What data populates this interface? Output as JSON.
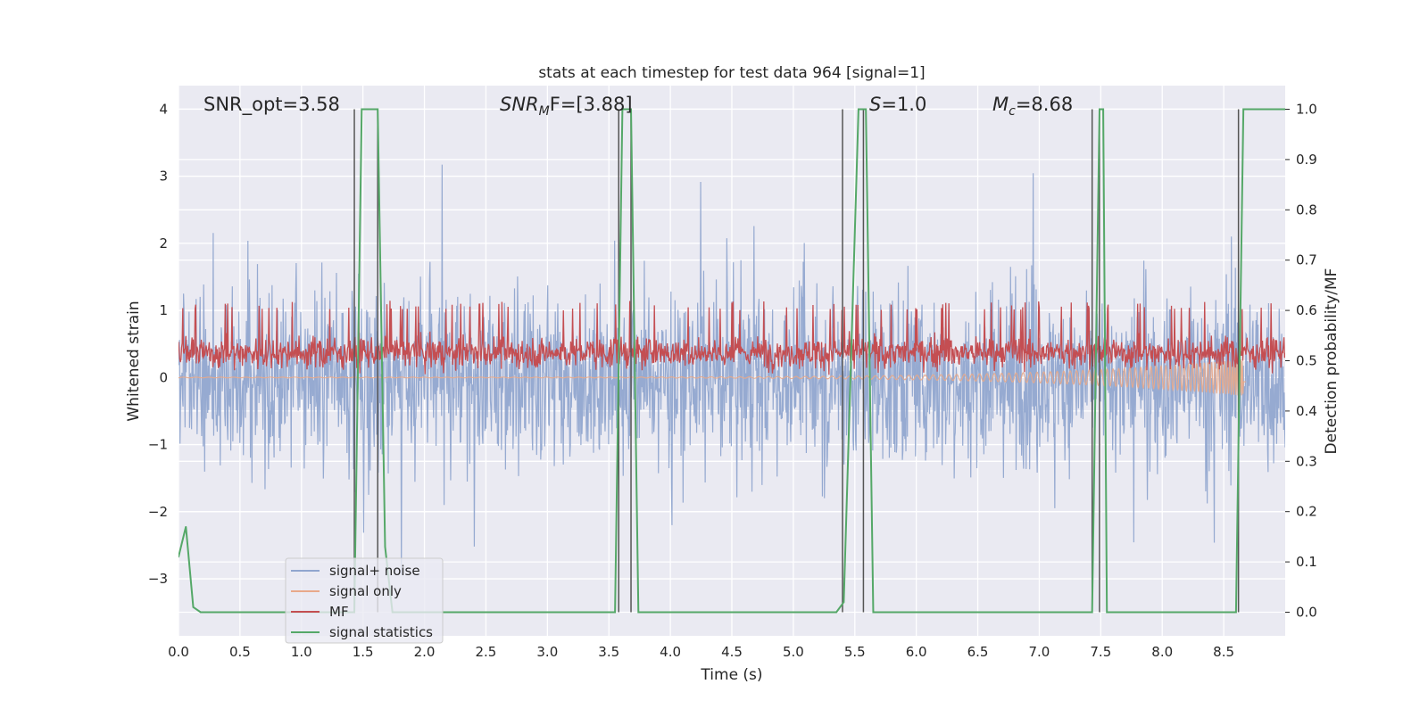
{
  "chart_data": {
    "type": "line",
    "title": "stats at each timestep for test data 964 [signal=1]",
    "xlabel": "Time (s)",
    "ylabel_left": "Whitened strain",
    "ylabel_right": "Detection probability/MF",
    "xlim": [
      0.0,
      9.0
    ],
    "ylim_left": [
      -3.85,
      4.35
    ],
    "ylim_right": [
      -0.047,
      1.047
    ],
    "x_ticks": [
      "0.0",
      "0.5",
      "1.0",
      "1.5",
      "2.0",
      "2.5",
      "3.0",
      "3.5",
      "4.0",
      "4.5",
      "5.0",
      "5.5",
      "6.0",
      "6.5",
      "7.0",
      "7.5",
      "8.0",
      "8.5"
    ],
    "y_ticks_left": [
      "4",
      "3",
      "2",
      "1",
      "0",
      "−1",
      "−2",
      "−3"
    ],
    "y_tick_values_left": [
      4,
      3,
      2,
      1,
      0,
      -1,
      -2,
      -3
    ],
    "y_ticks_right": [
      "1.0",
      "0.9",
      "0.8",
      "0.7",
      "0.6",
      "0.5",
      "0.4",
      "0.3",
      "0.2",
      "0.1",
      "0.0"
    ],
    "y_tick_values_right": [
      1.0,
      0.9,
      0.8,
      0.7,
      0.6,
      0.5,
      0.4,
      0.3,
      0.2,
      0.1,
      0.0
    ],
    "grid": true,
    "legend_position": "bottom-left",
    "annotations": {
      "snr_opt": "SNR_opt=3.58",
      "snr_mf_base": "SNR",
      "snr_mf_sub": "M",
      "snr_mf_rest": "F=[3.88]",
      "s_sym": "S",
      "s_val": "=1.0",
      "mc_sym": "M",
      "mc_sub": "c",
      "mc_val": "=8.68"
    },
    "series": [
      {
        "name": "signal+ noise",
        "axis": "left",
        "color": "#91a6cf",
        "kind": "noise",
        "x_range": [
          0.0,
          9.0
        ],
        "amplitude_envelope": 1.0,
        "peak_range": [
          -3.6,
          3.6
        ]
      },
      {
        "name": "signal only",
        "axis": "left",
        "color": "#e8a98a",
        "kind": "chirp",
        "x_range": [
          0.0,
          8.68
        ],
        "amplitude_start": 0.005,
        "amplitude_end": 0.28
      },
      {
        "name": "MF",
        "axis": "right",
        "color": "#c44e52",
        "kind": "band",
        "x_range": [
          0.0,
          9.0
        ],
        "band": [
          0.46,
          0.62
        ]
      },
      {
        "name": "signal statistics",
        "axis": "right",
        "color": "#55a868",
        "x": [
          0.0,
          0.06,
          0.12,
          0.18,
          1.43,
          1.49,
          1.62,
          1.68,
          1.74,
          3.55,
          3.61,
          3.68,
          3.74,
          5.35,
          5.41,
          5.53,
          5.59,
          5.65,
          7.43,
          7.49,
          7.52,
          7.55,
          8.6,
          8.66,
          9.0
        ],
        "y": [
          0.11,
          0.17,
          0.01,
          0.0,
          0.0,
          1.0,
          1.0,
          0.13,
          0.0,
          0.0,
          1.0,
          1.0,
          0.0,
          0.0,
          0.02,
          1.0,
          1.0,
          0.0,
          0.0,
          1.0,
          1.0,
          0.0,
          0.0,
          1.0,
          1.0
        ]
      }
    ],
    "vertical_markers": [
      1.43,
      1.62,
      3.58,
      3.68,
      5.4,
      5.57,
      7.43,
      7.49,
      8.62
    ]
  }
}
